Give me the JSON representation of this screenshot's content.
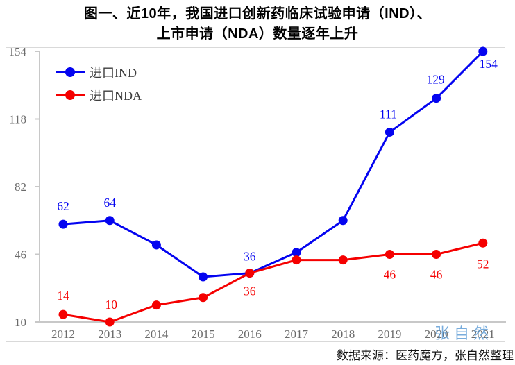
{
  "title": {
    "line1": "图一、近10年，我国进口创新药临床试验申请（IND）、",
    "line2": "上市申请（NDA）数量逐年上升"
  },
  "source_note": "数据来源：医药魔方，张自然整理",
  "watermark": "张自然",
  "chart_data": {
    "type": "line",
    "x": [
      "2012",
      "2013",
      "2014",
      "2015",
      "2016",
      "2017",
      "2018",
      "2019",
      "2020",
      "2021"
    ],
    "series": [
      {
        "name": "进口IND",
        "color": "#0404f0",
        "values": [
          62,
          64,
          51,
          34,
          36,
          47,
          64,
          111,
          129,
          154
        ],
        "labels": [
          "62",
          "64",
          null,
          null,
          "36",
          null,
          null,
          "111",
          "129",
          "154"
        ],
        "label_offsets": [
          [
            0,
            -20
          ],
          [
            0,
            -20
          ],
          null,
          null,
          [
            0,
            -18
          ],
          null,
          null,
          [
            -2,
            -20
          ],
          [
            -1,
            -21
          ],
          [
            8,
            24
          ]
        ]
      },
      {
        "name": "进口NDA",
        "color": "#f50000",
        "values": [
          14,
          10,
          19,
          23,
          36,
          43,
          43,
          46,
          46,
          52
        ],
        "labels": [
          "14",
          "10",
          null,
          null,
          "36",
          null,
          null,
          "46",
          "46",
          "52"
        ],
        "label_offsets": [
          [
            0,
            -21
          ],
          [
            2,
            -19
          ],
          null,
          null,
          [
            0,
            32
          ],
          null,
          null,
          [
            0,
            35
          ],
          [
            0,
            35
          ],
          [
            0,
            36
          ]
        ]
      }
    ],
    "yticks": [
      10,
      46,
      82,
      118,
      154
    ],
    "ylim": [
      10,
      154
    ],
    "grid": false,
    "legend_position": "top-left",
    "axis_color": "#c8c8c8"
  }
}
